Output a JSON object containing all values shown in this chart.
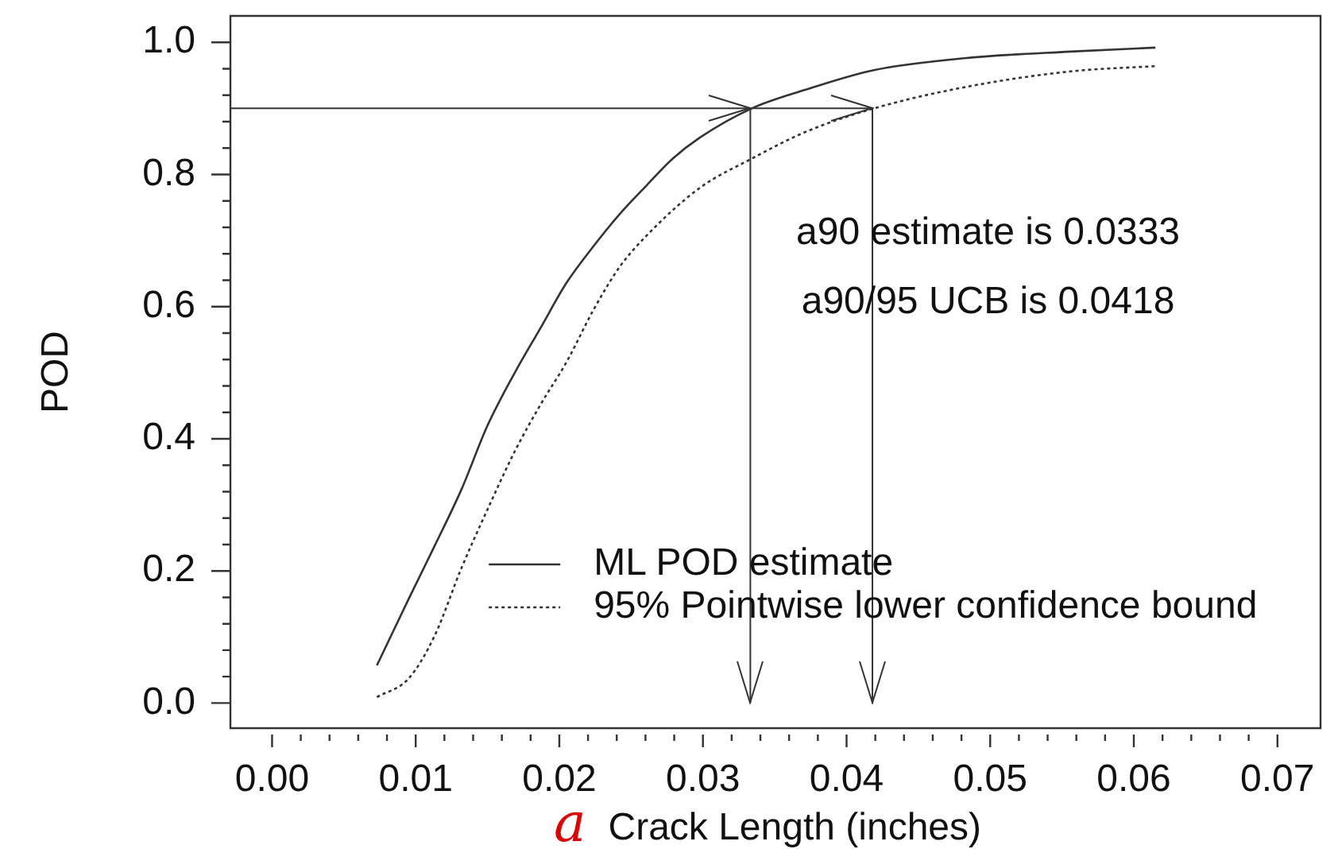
{
  "chart_data": {
    "type": "line",
    "xlabel": "a Crack Length (inches)",
    "ylabel": "POD",
    "series": [
      {
        "name": "ML POD estimate",
        "color": "#333333",
        "line_style": "solid",
        "x": [
          0.0073,
          0.0095,
          0.0113,
          0.0132,
          0.015,
          0.0169,
          0.0187,
          0.0205,
          0.0224,
          0.0242,
          0.0261,
          0.0279,
          0.0298,
          0.0334,
          0.0371,
          0.0419,
          0.0482,
          0.0556,
          0.0615
        ],
        "values": [
          0.057,
          0.157,
          0.237,
          0.324,
          0.42,
          0.5,
          0.568,
          0.636,
          0.692,
          0.74,
          0.784,
          0.824,
          0.856,
          0.9,
          0.928,
          0.958,
          0.976,
          0.986,
          0.992
        ]
      },
      {
        "name": "95% Pointwise lower confidence bound",
        "color": "#333333",
        "line_style": "dotted",
        "x": [
          0.0073,
          0.0095,
          0.0113,
          0.0132,
          0.015,
          0.0169,
          0.0187,
          0.0205,
          0.0224,
          0.0242,
          0.0261,
          0.0298,
          0.0334,
          0.0371,
          0.0419,
          0.0482,
          0.0556,
          0.0615
        ],
        "values": [
          0.009,
          0.037,
          0.101,
          0.205,
          0.293,
          0.381,
          0.452,
          0.516,
          0.596,
          0.66,
          0.708,
          0.78,
          0.824,
          0.864,
          0.9,
          0.932,
          0.956,
          0.964
        ]
      }
    ],
    "xlim": [
      -0.0029,
      0.073
    ],
    "ylim": [
      -0.038,
      1.04
    ],
    "xticks": [
      {
        "value": 0,
        "label": "0.00"
      },
      {
        "value": 0.002,
        "label": null
      },
      {
        "value": 0.004,
        "label": null
      },
      {
        "value": 0.006,
        "label": null
      },
      {
        "value": 0.008,
        "label": null
      },
      {
        "value": 0.01,
        "label": "0.01"
      },
      {
        "value": 0.012,
        "label": null
      },
      {
        "value": 0.014,
        "label": null
      },
      {
        "value": 0.016,
        "label": null
      },
      {
        "value": 0.018,
        "label": null
      },
      {
        "value": 0.02,
        "label": "0.02"
      },
      {
        "value": 0.022,
        "label": null
      },
      {
        "value": 0.024,
        "label": null
      },
      {
        "value": 0.026,
        "label": null
      },
      {
        "value": 0.028,
        "label": null
      },
      {
        "value": 0.03,
        "label": "0.03"
      },
      {
        "value": 0.032,
        "label": null
      },
      {
        "value": 0.034,
        "label": null
      },
      {
        "value": 0.036,
        "label": null
      },
      {
        "value": 0.038,
        "label": null
      },
      {
        "value": 0.04,
        "label": "0.04"
      },
      {
        "value": 0.042,
        "label": null
      },
      {
        "value": 0.044,
        "label": null
      },
      {
        "value": 0.046,
        "label": null
      },
      {
        "value": 0.048,
        "label": null
      },
      {
        "value": 0.05,
        "label": "0.05"
      },
      {
        "value": 0.052,
        "label": null
      },
      {
        "value": 0.054,
        "label": null
      },
      {
        "value": 0.056,
        "label": null
      },
      {
        "value": 0.058,
        "label": null
      },
      {
        "value": 0.06,
        "label": "0.06"
      },
      {
        "value": 0.062,
        "label": null
      },
      {
        "value": 0.064,
        "label": null
      },
      {
        "value": 0.066,
        "label": null
      },
      {
        "value": 0.068,
        "label": null
      },
      {
        "value": 0.07,
        "label": "0.07"
      }
    ],
    "yticks": [
      {
        "value": 0,
        "label": "0.0"
      },
      {
        "value": 0.04,
        "label": null
      },
      {
        "value": 0.08,
        "label": null
      },
      {
        "value": 0.12,
        "label": null
      },
      {
        "value": 0.16,
        "label": null
      },
      {
        "value": 0.2,
        "label": "0.2"
      },
      {
        "value": 0.24,
        "label": null
      },
      {
        "value": 0.28,
        "label": null
      },
      {
        "value": 0.32,
        "label": null
      },
      {
        "value": 0.36,
        "label": null
      },
      {
        "value": 0.4,
        "label": "0.4"
      },
      {
        "value": 0.44,
        "label": null
      },
      {
        "value": 0.48,
        "label": null
      },
      {
        "value": 0.52,
        "label": null
      },
      {
        "value": 0.56,
        "label": null
      },
      {
        "value": 0.6,
        "label": "0.6"
      },
      {
        "value": 0.64,
        "label": null
      },
      {
        "value": 0.68,
        "label": null
      },
      {
        "value": 0.72,
        "label": null
      },
      {
        "value": 0.76,
        "label": null
      },
      {
        "value": 0.8,
        "label": "0.8"
      },
      {
        "value": 0.84,
        "label": null
      },
      {
        "value": 0.88,
        "label": null
      },
      {
        "value": 0.92,
        "label": null
      },
      {
        "value": 0.96,
        "label": null
      },
      {
        "value": 1.0,
        "label": "1.0"
      }
    ],
    "annotations": [
      "a90 estimate is 0.0333",
      "a90/95 UCB is 0.0418"
    ],
    "ref_lines": [
      {
        "axis": "y",
        "value": 0.9
      },
      {
        "axis": "x",
        "value": 0.0333
      },
      {
        "axis": "x",
        "value": 0.0418
      }
    ],
    "legend": "bottom",
    "marker": "none"
  }
}
